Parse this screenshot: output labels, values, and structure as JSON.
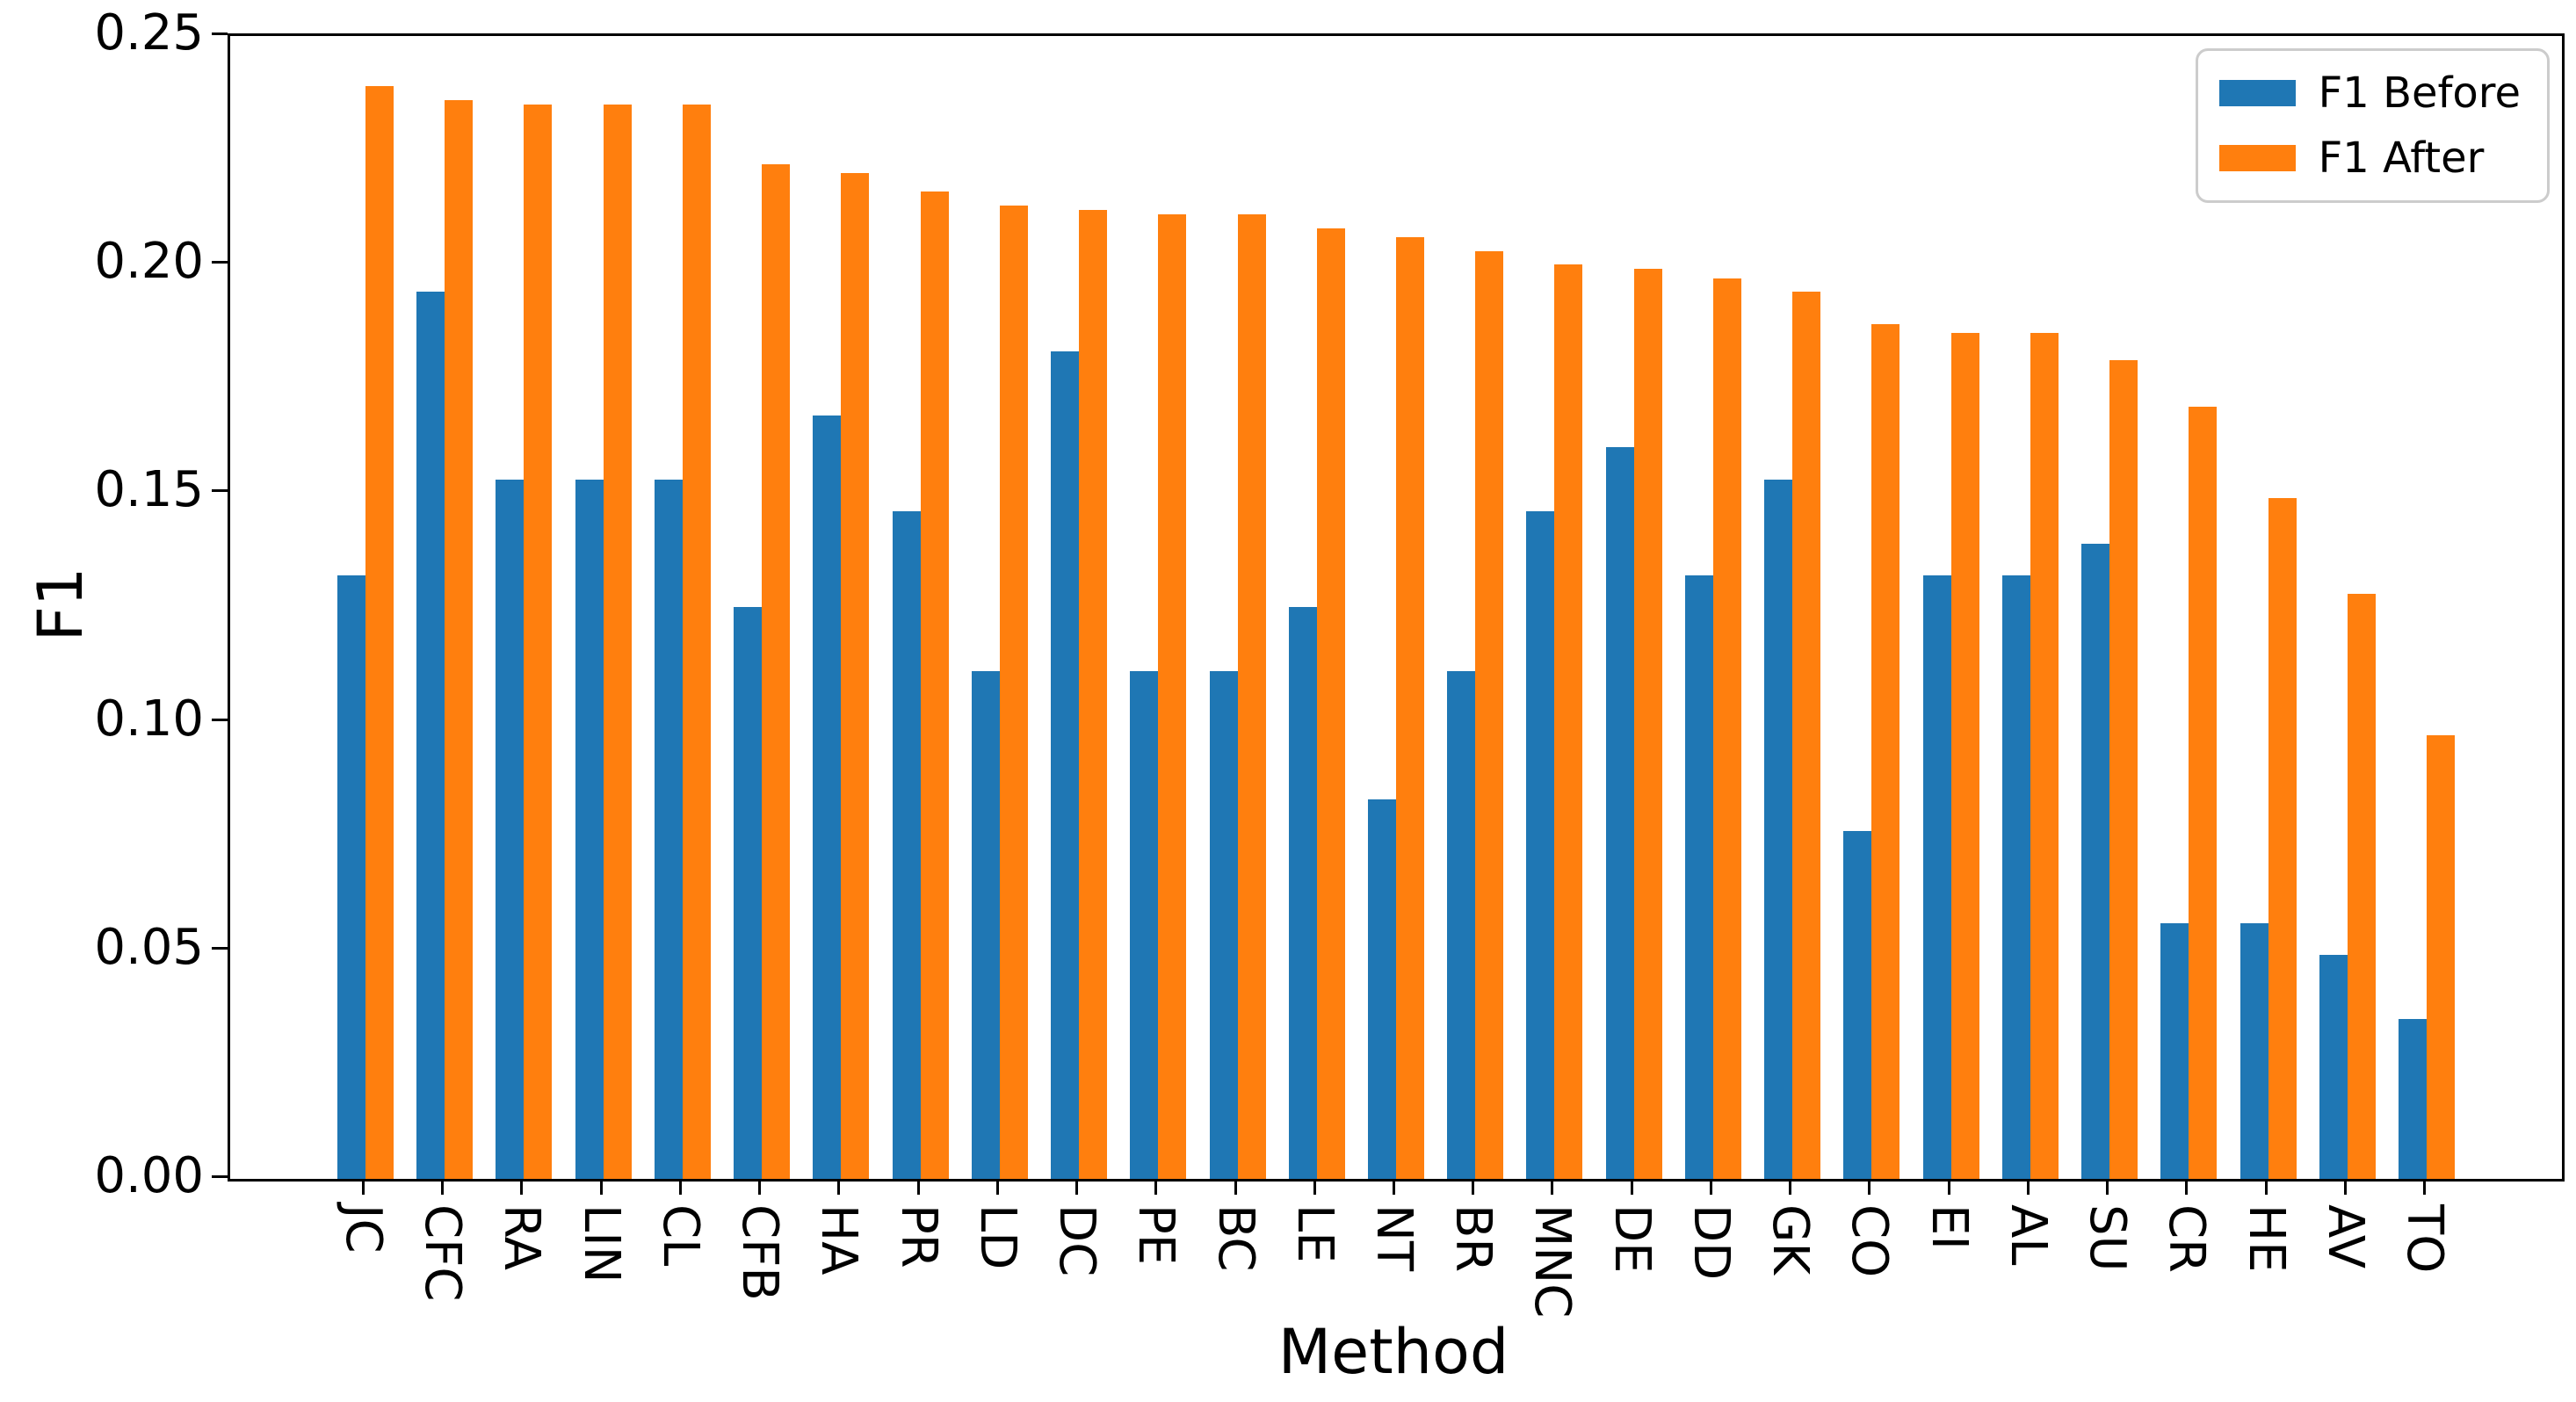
{
  "chart_data": {
    "type": "bar",
    "title": "",
    "xlabel": "Method",
    "ylabel": "F1",
    "categories": [
      "JC",
      "CFC",
      "RA",
      "LIN",
      "CL",
      "CFB",
      "HA",
      "PR",
      "LD",
      "DC",
      "PE",
      "BC",
      "LE",
      "NT",
      "BR",
      "MNC",
      "DE",
      "DD",
      "GK",
      "CO",
      "EI",
      "AL",
      "SU",
      "CR",
      "HE",
      "AV",
      "TO"
    ],
    "series": [
      {
        "name": "F1 Before",
        "color": "#1f77b4",
        "values": [
          0.132,
          0.194,
          0.153,
          0.153,
          0.153,
          0.125,
          0.167,
          0.146,
          0.111,
          0.181,
          0.111,
          0.111,
          0.125,
          0.083,
          0.111,
          0.146,
          0.16,
          0.132,
          0.153,
          0.076,
          0.132,
          0.132,
          0.139,
          0.056,
          0.056,
          0.049,
          0.035
        ]
      },
      {
        "name": "F1 After",
        "color": "#ff7f0e",
        "values": [
          0.239,
          0.236,
          0.235,
          0.235,
          0.235,
          0.222,
          0.22,
          0.216,
          0.213,
          0.212,
          0.211,
          0.211,
          0.208,
          0.206,
          0.203,
          0.2,
          0.199,
          0.197,
          0.194,
          0.187,
          0.185,
          0.185,
          0.179,
          0.169,
          0.149,
          0.128,
          0.097
        ]
      }
    ],
    "ylim": [
      0,
      0.25
    ],
    "yticks": [
      "0.00",
      "0.05",
      "0.10",
      "0.15",
      "0.20",
      "0.25"
    ],
    "ytick_values": [
      0,
      0.05,
      0.1,
      0.15,
      0.2,
      0.25
    ],
    "grid": false,
    "legend_position": "upper-right",
    "bar_width_fraction": 0.35
  }
}
